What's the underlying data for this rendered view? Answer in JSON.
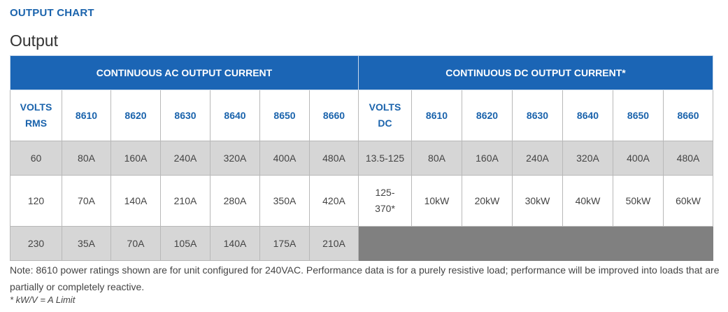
{
  "section_heading": "OUTPUT CHART",
  "title": "Output",
  "table": {
    "ac_header": "CONTINUOUS AC OUTPUT CURRENT",
    "dc_header": "CONTINUOUS DC OUTPUT CURRENT*",
    "ac_volts_label_line1": "VOLTS",
    "ac_volts_label_line2": "RMS",
    "dc_volts_label_line1": "VOLTS",
    "dc_volts_label_line2": "DC",
    "ac_models": [
      "8610",
      "8620",
      "8630",
      "8640",
      "8650",
      "8660"
    ],
    "dc_models": [
      "8610",
      "8620",
      "8630",
      "8640",
      "8650",
      "8660"
    ],
    "rows": [
      {
        "ac_volts": "60",
        "ac_values": [
          "80A",
          "160A",
          "240A",
          "320A",
          "400A",
          "480A"
        ],
        "dc_volts": "13.5-125",
        "dc_values": [
          "80A",
          "160A",
          "240A",
          "320A",
          "400A",
          "480A"
        ]
      },
      {
        "ac_volts": "120",
        "ac_values": [
          "70A",
          "140A",
          "210A",
          "280A",
          "350A",
          "420A"
        ],
        "dc_volts_line1": "125-",
        "dc_volts_line2": "370*",
        "dc_values": [
          "10kW",
          "20kW",
          "30kW",
          "40kW",
          "50kW",
          "60kW"
        ]
      },
      {
        "ac_volts": "230",
        "ac_values": [
          "35A",
          "70A",
          "105A",
          "140A",
          "175A",
          "210A"
        ]
      }
    ]
  },
  "note": "Note: 8610 power ratings shown are for unit configured for 240VAC. Performance data is for a purely resistive load; performance will be improved into loads that are partially or completely reactive.",
  "footnote": "* kW/V = A Limit",
  "colors": {
    "heading_blue": "#1a63ac",
    "header_bg": "#1b65b5",
    "row_gray": "#d6d6d6",
    "empty_block": "#808080"
  }
}
